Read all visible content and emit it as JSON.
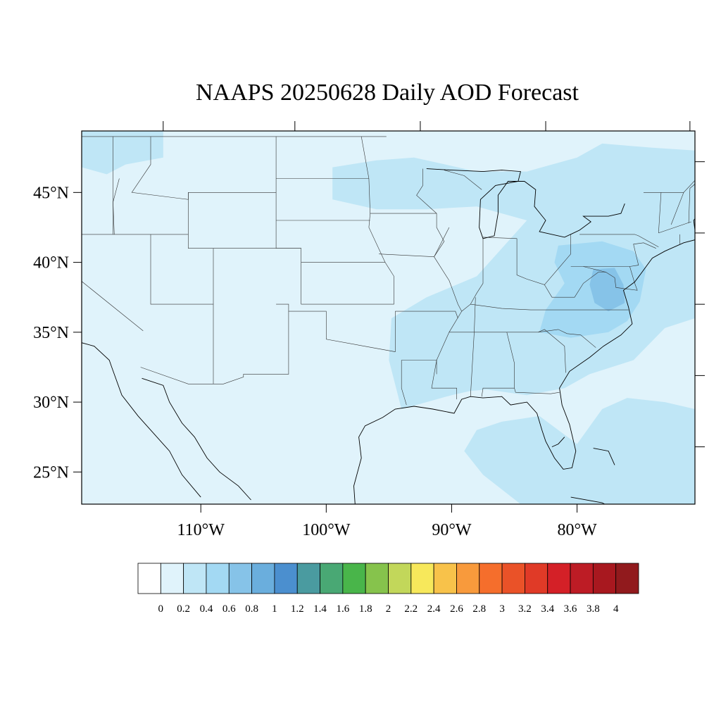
{
  "title": "NAAPS 20250628 Daily AOD Forecast",
  "map": {
    "projection": "cylindrical equidistant",
    "lon_range": [
      -119.5,
      -70.6
    ],
    "lat_range": [
      22.7,
      49.4
    ],
    "lon_ticks": [
      {
        "value": -110,
        "label": "110°W"
      },
      {
        "value": -100,
        "label": "100°W"
      },
      {
        "value": -90,
        "label": "90°W"
      },
      {
        "value": -80,
        "label": "80°W"
      }
    ],
    "lat_ticks": [
      {
        "value": 45,
        "label": "45°N"
      },
      {
        "value": 40,
        "label": "40°N"
      },
      {
        "value": 35,
        "label": "35°N"
      },
      {
        "value": 30,
        "label": "30°N"
      },
      {
        "value": 25,
        "label": "25°N"
      }
    ],
    "background_color": "#e0f3fb",
    "regions": [
      {
        "name": "pacific-northwest-haze",
        "level": 0.2,
        "color": "#bfe6f6"
      },
      {
        "name": "great-lakes-northeast-haze",
        "level": 0.2,
        "color": "#bfe6f6"
      },
      {
        "name": "mid-atlantic-plume",
        "level": 0.4,
        "color": "#a3d9f3"
      },
      {
        "name": "virginia-core",
        "level": 0.6,
        "color": "#86c3e8"
      },
      {
        "name": "southeast-haze",
        "level": 0.2,
        "color": "#bfe6f6"
      },
      {
        "name": "gulf-atlantic-haze",
        "level": 0.2,
        "color": "#bfe6f6"
      }
    ]
  },
  "colorbar": {
    "labels": [
      "0",
      "0.2",
      "0.4",
      "0.6",
      "0.8",
      "1",
      "1.2",
      "1.4",
      "1.6",
      "1.8",
      "2",
      "2.2",
      "2.4",
      "2.6",
      "2.8",
      "3",
      "3.2",
      "3.4",
      "3.6",
      "3.8",
      "4"
    ],
    "colors": [
      "#ffffff",
      "#e0f3fb",
      "#bfe6f6",
      "#a3d9f3",
      "#86c3e8",
      "#6aaedd",
      "#4b8fcf",
      "#4a9ba0",
      "#49a874",
      "#49b54a",
      "#86c34c",
      "#c2d75a",
      "#f7e85b",
      "#f8c24a",
      "#f89a3c",
      "#f56e2c",
      "#ea5228",
      "#e03a27",
      "#d42027",
      "#bd1c25",
      "#a8181f",
      "#911a1d"
    ]
  }
}
